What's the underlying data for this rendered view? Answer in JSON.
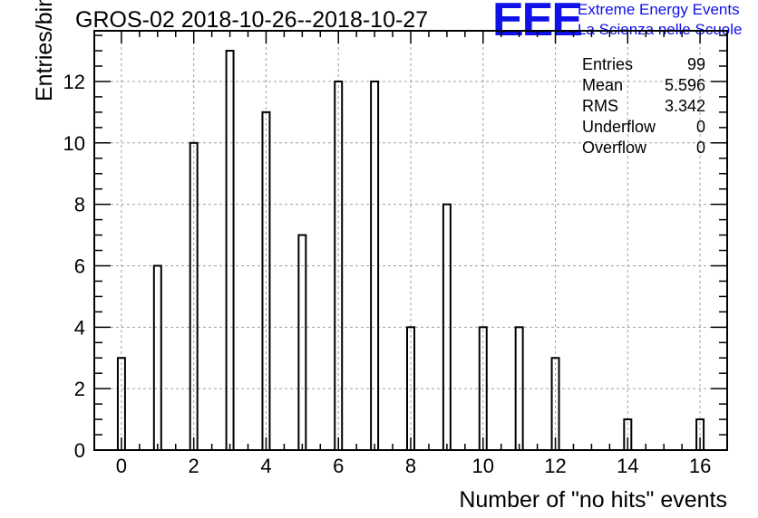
{
  "chart_data": {
    "type": "bar",
    "title": "GROS-02 2018-10-26--2018-10-27",
    "xlabel": "Number of \"no hits\" events",
    "ylabel": "Entries/bin",
    "xlim": [
      -0.75,
      16.75
    ],
    "ylim": [
      0,
      13.65
    ],
    "xticks": [
      0,
      2,
      4,
      6,
      8,
      10,
      12,
      14,
      16
    ],
    "yticks": [
      0,
      2,
      4,
      6,
      8,
      10,
      12
    ],
    "grid": true,
    "bin_width": 0.2,
    "x": [
      0,
      1,
      2,
      3,
      4,
      5,
      6,
      7,
      8,
      9,
      10,
      11,
      12,
      13,
      14,
      15,
      16
    ],
    "values": [
      3,
      6,
      10,
      13,
      11,
      7,
      12,
      12,
      4,
      8,
      4,
      4,
      3,
      0,
      1,
      0,
      1
    ]
  },
  "stats": [
    {
      "label": "Entries",
      "value": "99"
    },
    {
      "label": "Mean",
      "value": "5.596"
    },
    {
      "label": "RMS",
      "value": "3.342"
    },
    {
      "label": "Underflow",
      "value": "0"
    },
    {
      "label": "Overflow",
      "value": "0"
    }
  ],
  "logo": {
    "mark": "EEE",
    "line1": "Extreme Energy Events",
    "line2": "La Scienza nelle Scuole",
    "color": "#1010e8"
  }
}
